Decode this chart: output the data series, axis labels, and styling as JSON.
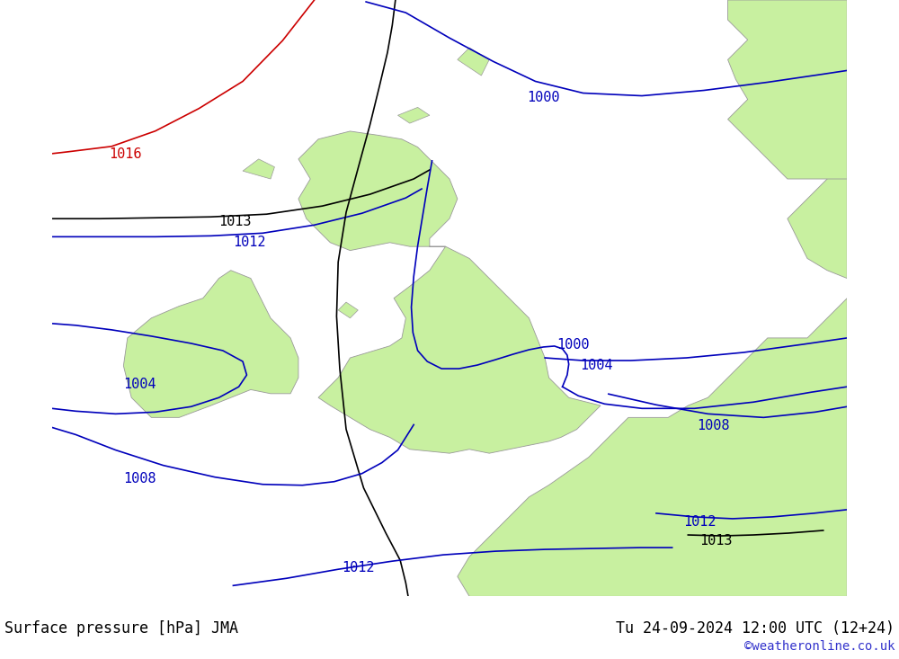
{
  "title_left": "Surface pressure [hPa] JMA",
  "title_right": "Tu 24-09-2024 12:00 UTC (12+24)",
  "watermark": "©weatheronline.co.uk",
  "bg_color": "#d8d8d8",
  "land_color": "#c8f0a0",
  "land_border_color": "#999999",
  "sea_color": "#d8d8d8",
  "white_bar_color": "#ffffff",
  "isobar_blue": "#0000bb",
  "isobar_black": "#000000",
  "isobar_red": "#cc0000",
  "label_fontsize": 11,
  "title_fontsize": 12,
  "watermark_fontsize": 10,
  "watermark_color": "#3333cc",
  "figsize": [
    10.0,
    7.33
  ],
  "dpi": 100,
  "lon_min": -12.0,
  "lon_max": 8.0,
  "lat_min": 47.0,
  "lat_max": 62.0
}
